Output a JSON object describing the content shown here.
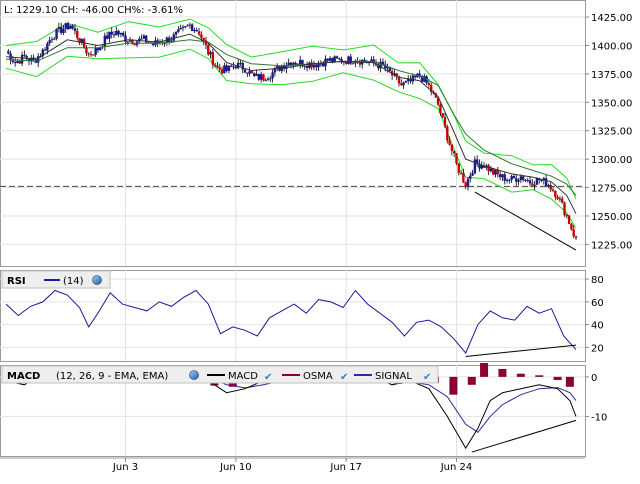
{
  "header": {
    "stats_text": "L: 1229.10 CH: -46.00 CH%: -3.61%"
  },
  "colors": {
    "candle_body": "#1a1a8c",
    "candle_down": "#cc0000",
    "wick": "#000000",
    "bollinger": "#22dd22",
    "ema_fast": "#333333",
    "ema_slow": "#2a7a2a",
    "trendline": "#000000",
    "dashed": "#444444",
    "rsi_line": "#1a1a9c",
    "macd_line": "#000000",
    "signal_line": "#2a2a9c",
    "osma_bar": "#8b0033"
  },
  "rsi_panel": {
    "title": "RSI",
    "legend_label": "(14)"
  },
  "macd_panel": {
    "title": "MACD",
    "params_label": "(12, 26, 9 - EMA, EMA)",
    "legend_macd": "MACD",
    "legend_osma": "OSMA",
    "legend_signal": "SIGNAL"
  },
  "chart_data": [
    {
      "type": "candlestick",
      "title": "",
      "ylim": [
        1206,
        1440
      ],
      "y_ticks": [
        1225,
        1250,
        1275,
        1300,
        1325,
        1350,
        1375,
        1400,
        1425
      ],
      "y_tick_labels": [
        "1225.00",
        "1250.00",
        "1275.00",
        "1300.00",
        "1325.00",
        "1350.00",
        "1375.00",
        "1400.00",
        "1425.00"
      ],
      "x_ticks": [
        "Jun 3",
        "Jun 10",
        "Jun 17",
        "Jun 24"
      ],
      "reference_line": 1276,
      "last_value": 1229.1,
      "change": -46.0,
      "change_pct": -3.61,
      "close_path": [
        [
          0,
          1395
        ],
        [
          3,
          1385
        ],
        [
          6,
          1390
        ],
        [
          9,
          1386
        ],
        [
          12,
          1395
        ],
        [
          15,
          1408
        ],
        [
          18,
          1414
        ],
        [
          21,
          1418
        ],
        [
          24,
          1405
        ],
        [
          27,
          1392
        ],
        [
          30,
          1397
        ],
        [
          33,
          1408
        ],
        [
          36,
          1412
        ],
        [
          39,
          1406
        ],
        [
          42,
          1404
        ],
        [
          45,
          1405
        ],
        [
          48,
          1401
        ],
        [
          51,
          1404
        ],
        [
          54,
          1406
        ],
        [
          57,
          1412
        ],
        [
          60,
          1418
        ],
        [
          63,
          1412
        ],
        [
          66,
          1394
        ],
        [
          69,
          1380
        ],
        [
          72,
          1378
        ],
        [
          75,
          1383
        ],
        [
          78,
          1380
        ],
        [
          81,
          1372
        ],
        [
          84,
          1372
        ],
        [
          87,
          1376
        ],
        [
          90,
          1382
        ],
        [
          93,
          1386
        ],
        [
          96,
          1385
        ],
        [
          99,
          1384
        ],
        [
          102,
          1384
        ],
        [
          105,
          1387
        ],
        [
          108,
          1387
        ],
        [
          111,
          1387
        ],
        [
          114,
          1388
        ],
        [
          117,
          1386
        ],
        [
          120,
          1384
        ],
        [
          123,
          1382
        ],
        [
          126,
          1374
        ],
        [
          129,
          1365
        ],
        [
          132,
          1368
        ],
        [
          135,
          1374
        ],
        [
          138,
          1364
        ],
        [
          141,
          1348
        ],
        [
          144,
          1320
        ],
        [
          147,
          1295
        ],
        [
          150,
          1278
        ],
        [
          153,
          1296
        ],
        [
          156,
          1295
        ],
        [
          159,
          1288
        ],
        [
          162,
          1284
        ],
        [
          165,
          1282
        ],
        [
          168,
          1285
        ],
        [
          171,
          1280
        ],
        [
          174,
          1282
        ],
        [
          177,
          1278
        ],
        [
          180,
          1268
        ],
        [
          183,
          1250
        ],
        [
          186,
          1229
        ]
      ],
      "ema_fast_path": [
        [
          0,
          1390
        ],
        [
          10,
          1388
        ],
        [
          20,
          1405
        ],
        [
          30,
          1400
        ],
        [
          40,
          1405
        ],
        [
          50,
          1403
        ],
        [
          60,
          1410
        ],
        [
          66,
          1402
        ],
        [
          72,
          1385
        ],
        [
          80,
          1378
        ],
        [
          90,
          1380
        ],
        [
          100,
          1384
        ],
        [
          110,
          1386
        ],
        [
          120,
          1385
        ],
        [
          128,
          1372
        ],
        [
          135,
          1369
        ],
        [
          141,
          1355
        ],
        [
          146,
          1325
        ],
        [
          150,
          1300
        ],
        [
          156,
          1294
        ],
        [
          165,
          1287
        ],
        [
          172,
          1284
        ],
        [
          178,
          1280
        ],
        [
          183,
          1268
        ],
        [
          186,
          1252
        ]
      ],
      "ema_slow_path": [
        [
          0,
          1388
        ],
        [
          10,
          1386
        ],
        [
          20,
          1398
        ],
        [
          30,
          1398
        ],
        [
          40,
          1402
        ],
        [
          50,
          1402
        ],
        [
          60,
          1405
        ],
        [
          66,
          1403
        ],
        [
          72,
          1392
        ],
        [
          80,
          1384
        ],
        [
          90,
          1382
        ],
        [
          100,
          1384
        ],
        [
          110,
          1386
        ],
        [
          120,
          1386
        ],
        [
          128,
          1378
        ],
        [
          135,
          1373
        ],
        [
          141,
          1365
        ],
        [
          146,
          1340
        ],
        [
          150,
          1322
        ],
        [
          156,
          1308
        ],
        [
          165,
          1296
        ],
        [
          172,
          1290
        ],
        [
          178,
          1285
        ],
        [
          183,
          1278
        ],
        [
          186,
          1268
        ]
      ],
      "trendlines": [
        {
          "from": [
            153,
            1271
          ],
          "to": [
            186,
            1220
          ]
        }
      ]
    },
    {
      "type": "line",
      "title": "RSI",
      "ylim": [
        8,
        88
      ],
      "y_ticks": [
        20,
        40,
        60,
        80
      ],
      "y_tick_labels": [
        "20",
        "40",
        "60",
        "80"
      ],
      "series": [
        {
          "name": "RSI (14)",
          "points": [
            [
              0,
              58
            ],
            [
              4,
              48
            ],
            [
              8,
              56
            ],
            [
              12,
              60
            ],
            [
              16,
              70
            ],
            [
              20,
              66
            ],
            [
              24,
              55
            ],
            [
              27,
              38
            ],
            [
              30,
              50
            ],
            [
              34,
              68
            ],
            [
              38,
              58
            ],
            [
              42,
              55
            ],
            [
              46,
              52
            ],
            [
              50,
              60
            ],
            [
              54,
              56
            ],
            [
              58,
              64
            ],
            [
              62,
              70
            ],
            [
              66,
              58
            ],
            [
              70,
              32
            ],
            [
              74,
              38
            ],
            [
              78,
              35
            ],
            [
              82,
              30
            ],
            [
              86,
              46
            ],
            [
              90,
              52
            ],
            [
              94,
              58
            ],
            [
              98,
              50
            ],
            [
              102,
              62
            ],
            [
              106,
              60
            ],
            [
              110,
              55
            ],
            [
              114,
              70
            ],
            [
              118,
              58
            ],
            [
              122,
              50
            ],
            [
              126,
              42
            ],
            [
              130,
              30
            ],
            [
              134,
              42
            ],
            [
              138,
              44
            ],
            [
              142,
              38
            ],
            [
              146,
              28
            ],
            [
              150,
              15
            ],
            [
              154,
              40
            ],
            [
              158,
              52
            ],
            [
              162,
              46
            ],
            [
              166,
              44
            ],
            [
              170,
              56
            ],
            [
              174,
              50
            ],
            [
              178,
              54
            ],
            [
              182,
              30
            ],
            [
              186,
              18
            ]
          ]
        }
      ],
      "trendlines": [
        {
          "from": [
            150,
            12
          ],
          "to": [
            186,
            22
          ]
        }
      ]
    },
    {
      "type": "line",
      "title": "MACD",
      "ylim": [
        -20,
        3
      ],
      "y_ticks": [
        0,
        -10
      ],
      "y_tick_labels": [
        "0",
        "-10"
      ],
      "series": [
        {
          "name": "MACD",
          "points": [
            [
              0,
              -1
            ],
            [
              6,
              -2
            ],
            [
              12,
              1
            ],
            [
              18,
              2
            ],
            [
              24,
              -1
            ],
            [
              30,
              1
            ],
            [
              36,
              0.5
            ],
            [
              42,
              -0.5
            ],
            [
              48,
              0.5
            ],
            [
              54,
              0.3
            ],
            [
              60,
              1.5
            ],
            [
              66,
              -1
            ],
            [
              72,
              -4
            ],
            [
              78,
              -3
            ],
            [
              84,
              -1
            ],
            [
              90,
              -0.5
            ],
            [
              96,
              -0.2
            ],
            [
              102,
              0.3
            ],
            [
              108,
              0.5
            ],
            [
              114,
              0.5
            ],
            [
              120,
              0
            ],
            [
              126,
              -2
            ],
            [
              132,
              -1
            ],
            [
              138,
              -3
            ],
            [
              144,
              -10
            ],
            [
              150,
              -18
            ],
            [
              154,
              -13
            ],
            [
              158,
              -6
            ],
            [
              162,
              -4
            ],
            [
              168,
              -3
            ],
            [
              174,
              -2
            ],
            [
              180,
              -3
            ],
            [
              184,
              -6
            ],
            [
              186,
              -10
            ]
          ]
        },
        {
          "name": "OSMA",
          "bars": [
            [
              2,
              -0.5
            ],
            [
              8,
              -0.4
            ],
            [
              14,
              0.5
            ],
            [
              20,
              0.6
            ],
            [
              26,
              -0.6
            ],
            [
              32,
              0.4
            ],
            [
              38,
              0.2
            ],
            [
              44,
              -0.3
            ],
            [
              50,
              0.2
            ],
            [
              56,
              0.1
            ],
            [
              62,
              0.6
            ],
            [
              68,
              -2.2
            ],
            [
              74,
              -2.5
            ],
            [
              80,
              -0.8
            ],
            [
              86,
              0.8
            ],
            [
              92,
              0.5
            ],
            [
              98,
              0.2
            ],
            [
              104,
              0.3
            ],
            [
              110,
              0.2
            ],
            [
              116,
              0.1
            ],
            [
              122,
              -0.3
            ],
            [
              128,
              -1.8
            ],
            [
              134,
              0.3
            ],
            [
              140,
              -1.5
            ],
            [
              146,
              -4.5
            ],
            [
              152,
              -2
            ],
            [
              156,
              3.5
            ],
            [
              162,
              2
            ],
            [
              168,
              0.8
            ],
            [
              174,
              0.4
            ],
            [
              180,
              -0.8
            ],
            [
              184,
              -2.5
            ]
          ]
        },
        {
          "name": "SIGNAL",
          "points": [
            [
              0,
              -0.5
            ],
            [
              6,
              -1.5
            ],
            [
              12,
              0.5
            ],
            [
              18,
              1.5
            ],
            [
              24,
              0
            ],
            [
              30,
              0.5
            ],
            [
              36,
              0.5
            ],
            [
              42,
              0
            ],
            [
              48,
              0.3
            ],
            [
              54,
              0.3
            ],
            [
              60,
              1
            ],
            [
              66,
              0
            ],
            [
              72,
              -2
            ],
            [
              78,
              -2.8
            ],
            [
              84,
              -2
            ],
            [
              90,
              -1
            ],
            [
              96,
              -0.5
            ],
            [
              102,
              0
            ],
            [
              108,
              0.3
            ],
            [
              114,
              0.4
            ],
            [
              120,
              0.2
            ],
            [
              126,
              -1
            ],
            [
              132,
              -1.3
            ],
            [
              138,
              -2
            ],
            [
              144,
              -5
            ],
            [
              150,
              -12
            ],
            [
              154,
              -14
            ],
            [
              158,
              -10
            ],
            [
              162,
              -7
            ],
            [
              168,
              -4.5
            ],
            [
              174,
              -3
            ],
            [
              180,
              -2.7
            ],
            [
              184,
              -4
            ],
            [
              186,
              -6
            ]
          ]
        }
      ],
      "trendlines": [
        {
          "from": [
            152,
            -19
          ],
          "to": [
            186,
            -11
          ]
        }
      ]
    }
  ]
}
